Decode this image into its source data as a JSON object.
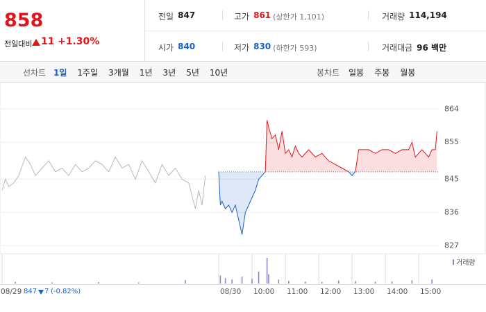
{
  "quote": {
    "price": 858,
    "change_label": "전일대비",
    "change": 11,
    "change_rate": "+1.30%",
    "color": "#e0161c"
  },
  "stats": [
    {
      "label": "전일",
      "value": 847,
      "color": "#222222"
    },
    {
      "label": "고가",
      "value": 861,
      "note": "(상한가 1,101)",
      "color": "#e0161c"
    },
    {
      "label": "거래량",
      "value": "114,194",
      "color": "#222222"
    },
    {
      "label": "시가",
      "value": 840,
      "color": "#1a5fc9"
    },
    {
      "label": "저가",
      "value": 830,
      "note": "(하한가 593)",
      "color": "#1a5fc9"
    },
    {
      "label": "거래대금",
      "value": "96 백만",
      "color": "#222222"
    }
  ],
  "tabs": {
    "line_label": "선차트",
    "line": [
      "1일",
      "1주일",
      "3개월",
      "1년",
      "3년",
      "5년",
      "10년"
    ],
    "selected_index": 0,
    "candle_label": "봉차트",
    "candle": [
      "일봉",
      "주봉",
      "월봉"
    ]
  },
  "footer": {
    "close": 847,
    "change": 7,
    "change_rate": "(-0.82%)",
    "color": "#1a5fc9"
  },
  "chart_data": {
    "type": "line",
    "xlim": [
      0,
      13.125
    ],
    "ylim": [
      825,
      869.5
    ],
    "yticks": [
      864,
      855,
      845,
      836,
      827
    ],
    "xticks": [
      {
        "value": 0,
        "label": "08/29"
      },
      {
        "value": 6.5,
        "label": "08/30"
      },
      {
        "value": 7.5,
        "label": "10:00"
      },
      {
        "value": 8.5,
        "label": "11:00"
      },
      {
        "value": 9.5,
        "label": "12:00"
      },
      {
        "value": 10.5,
        "label": "13:00"
      },
      {
        "value": 11.5,
        "label": "14:00"
      },
      {
        "value": 12.5,
        "label": "15:00"
      }
    ],
    "reference": 847,
    "series": [
      {
        "color": "#b8b8b8",
        "x": [
          0,
          0.1,
          0.2,
          0.35,
          0.5,
          0.7,
          0.85,
          1.0,
          1.2,
          1.4,
          1.6,
          1.8,
          2.0,
          2.2,
          2.4,
          2.6,
          2.8,
          3.0,
          3.2,
          3.4,
          3.6,
          3.8,
          4.0,
          4.2,
          4.4,
          4.6,
          4.8,
          5.0,
          5.2,
          5.4,
          5.6,
          5.8,
          5.9,
          6.0,
          6.1
        ],
        "values": [
          842,
          845,
          843,
          844,
          846,
          851,
          849,
          846,
          848,
          850,
          847,
          848,
          846,
          849,
          847,
          848,
          850,
          849,
          847,
          851,
          848,
          849,
          845,
          850,
          847,
          844,
          849,
          846,
          848,
          845,
          844,
          837,
          842,
          838,
          846
        ]
      },
      {
        "color": "#e0161c",
        "color_below": "#1a5fc9",
        "x": [
          6.5,
          6.55,
          6.6,
          6.7,
          6.8,
          6.9,
          7.0,
          7.1,
          7.2,
          7.3,
          7.4,
          7.5,
          7.6,
          7.7,
          7.8,
          7.9,
          7.95,
          8.0,
          8.1,
          8.2,
          8.3,
          8.4,
          8.5,
          8.6,
          8.7,
          8.8,
          8.9,
          9.0,
          9.2,
          9.4,
          9.6,
          9.8,
          10.0,
          10.2,
          10.4,
          10.5,
          10.6,
          10.7,
          11.0,
          11.2,
          11.4,
          11.6,
          11.8,
          12.0,
          12.2,
          12.3,
          12.4,
          12.6,
          12.8,
          12.9,
          13.0,
          13.05
        ],
        "values": [
          847,
          838,
          839,
          837,
          838,
          836,
          838,
          834,
          830,
          836,
          838,
          840,
          842,
          845,
          846,
          847,
          861,
          859,
          856,
          857,
          853,
          858,
          852,
          853,
          851,
          854,
          852,
          851,
          853,
          851,
          852,
          850,
          849,
          848,
          847,
          846,
          847,
          853,
          853,
          852,
          853,
          853,
          852,
          853,
          853,
          855,
          851,
          853,
          851,
          853,
          853,
          858
        ]
      }
    ],
    "volume": {
      "name": "거래량",
      "color": "#8a7fc0",
      "ylim": [
        0,
        20000
      ],
      "x": [
        0.4,
        1.5,
        2.9,
        4.1,
        5.5,
        6.55,
        6.7,
        6.9,
        7.2,
        7.5,
        7.7,
        7.95,
        8.0,
        8.3,
        8.6,
        9.1,
        9.6,
        10.1,
        10.6,
        11.2,
        11.7,
        12.3,
        12.9
      ],
      "values": [
        1200,
        900,
        1100,
        800,
        2500,
        6000,
        4000,
        3000,
        5000,
        3500,
        9000,
        19000,
        7000,
        3000,
        2000,
        1500,
        1200,
        2200,
        1800,
        1300,
        1600,
        2400,
        3000
      ]
    }
  }
}
